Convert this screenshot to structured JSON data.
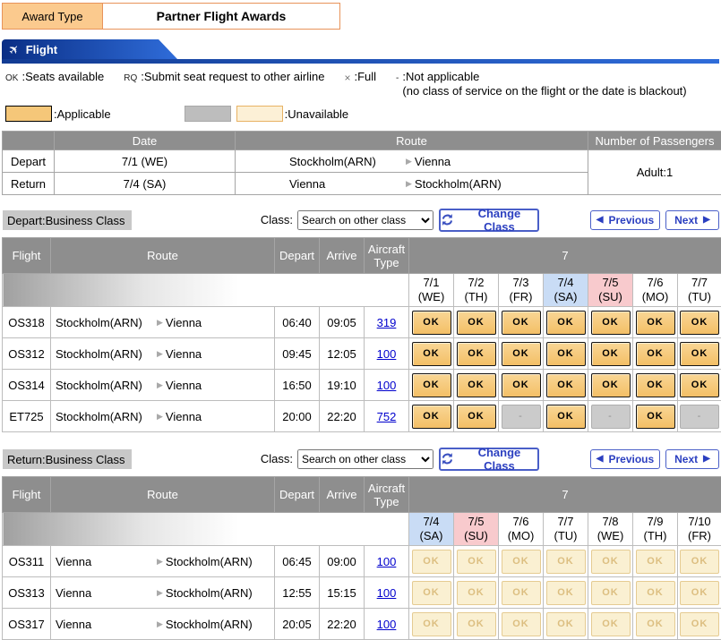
{
  "header": {
    "award_type_label": "Award Type",
    "award_type_value": "Partner Flight Awards",
    "flight_tab_label": "Flight"
  },
  "legend": {
    "ok_symbol": "OK",
    "ok_text": ":Seats available",
    "rq_symbol": "RQ",
    "rq_text": ":Submit seat request to other airline",
    "full_symbol": "×",
    "full_text": ":Full",
    "na_symbol": "-",
    "na_text": ":Not applicable",
    "na_note": "(no class of service on the flight or the date is blackout)",
    "applicable_label": ":Applicable",
    "unavailable_label": ":Unavailable"
  },
  "summary": {
    "col_date": "Date",
    "col_route": "Route",
    "col_passengers": "Number of Passengers",
    "rows": [
      {
        "label": "Depart",
        "date": "7/1 (WE)",
        "from": "Stockholm(ARN)",
        "to": "Vienna"
      },
      {
        "label": "Return",
        "date": "7/4 (SA)",
        "from": "Vienna",
        "to": "Stockholm(ARN)"
      }
    ],
    "passengers": "Adult:1"
  },
  "toolbar": {
    "class_label": "Class:",
    "class_select_value": "Search on other class",
    "change_class_label": "Change Class",
    "previous_label": "Previous",
    "next_label": "Next",
    "prev_arrow": "◀",
    "next_arrow": "▶"
  },
  "grid_columns": {
    "flight": "Flight",
    "route": "Route",
    "depart": "Depart",
    "arrive": "Arrive",
    "aircraft": "Aircraft Type"
  },
  "availability_labels": {
    "ok": "OK",
    "na": "-",
    "dim": "OK"
  },
  "route_arrow": "▶",
  "depart_section": {
    "title": "Depart:Business Class",
    "month": "7",
    "dates": [
      {
        "d": "7/1",
        "w": "(WE)",
        "hl": "none"
      },
      {
        "d": "7/2",
        "w": "(TH)",
        "hl": "none"
      },
      {
        "d": "7/3",
        "w": "(FR)",
        "hl": "none"
      },
      {
        "d": "7/4",
        "w": "(SA)",
        "hl": "sat"
      },
      {
        "d": "7/5",
        "w": "(SU)",
        "hl": "sun"
      },
      {
        "d": "7/6",
        "w": "(MO)",
        "hl": "none"
      },
      {
        "d": "7/7",
        "w": "(TU)",
        "hl": "none"
      }
    ],
    "flights": [
      {
        "flight": "OS318",
        "from": "Stockholm(ARN)",
        "to": "Vienna",
        "depart": "06:40",
        "arrive": "09:05",
        "aircraft": "319",
        "cells": [
          "ok",
          "ok",
          "ok",
          "ok",
          "ok",
          "ok",
          "ok"
        ]
      },
      {
        "flight": "OS312",
        "from": "Stockholm(ARN)",
        "to": "Vienna",
        "depart": "09:45",
        "arrive": "12:05",
        "aircraft": "100",
        "cells": [
          "ok",
          "ok",
          "ok",
          "ok",
          "ok",
          "ok",
          "ok"
        ]
      },
      {
        "flight": "OS314",
        "from": "Stockholm(ARN)",
        "to": "Vienna",
        "depart": "16:50",
        "arrive": "19:10",
        "aircraft": "100",
        "cells": [
          "ok",
          "ok",
          "ok",
          "ok",
          "ok",
          "ok",
          "ok"
        ]
      },
      {
        "flight": "ET725",
        "from": "Stockholm(ARN)",
        "to": "Vienna",
        "depart": "20:00",
        "arrive": "22:20",
        "aircraft": "752",
        "cells": [
          "ok",
          "ok",
          "na",
          "ok",
          "na",
          "ok",
          "na"
        ]
      }
    ]
  },
  "return_section": {
    "title": "Return:Business Class",
    "month": "7",
    "dates": [
      {
        "d": "7/4",
        "w": "(SA)",
        "hl": "sat"
      },
      {
        "d": "7/5",
        "w": "(SU)",
        "hl": "sun"
      },
      {
        "d": "7/6",
        "w": "(MO)",
        "hl": "none"
      },
      {
        "d": "7/7",
        "w": "(TU)",
        "hl": "none"
      },
      {
        "d": "7/8",
        "w": "(WE)",
        "hl": "none"
      },
      {
        "d": "7/9",
        "w": "(TH)",
        "hl": "none"
      },
      {
        "d": "7/10",
        "w": "(FR)",
        "hl": "none"
      }
    ],
    "flights": [
      {
        "flight": "OS311",
        "from": "Vienna",
        "to": "Stockholm(ARN)",
        "depart": "06:45",
        "arrive": "09:00",
        "aircraft": "100",
        "cells": [
          "dim",
          "dim",
          "dim",
          "dim",
          "dim",
          "dim",
          "dim"
        ]
      },
      {
        "flight": "OS313",
        "from": "Vienna",
        "to": "Stockholm(ARN)",
        "depart": "12:55",
        "arrive": "15:15",
        "aircraft": "100",
        "cells": [
          "dim",
          "dim",
          "dim",
          "dim",
          "dim",
          "dim",
          "dim"
        ]
      },
      {
        "flight": "OS317",
        "from": "Vienna",
        "to": "Stockholm(ARN)",
        "depart": "20:05",
        "arrive": "22:20",
        "aircraft": "100",
        "cells": [
          "dim",
          "dim",
          "dim",
          "dim",
          "dim",
          "dim",
          "dim"
        ]
      }
    ]
  },
  "colors": {
    "applicable_orange": "#F5C779",
    "unavailable_cream": "#FAF0D2",
    "not_applicable_gray": "#CBCBCB",
    "saturday_blue": "#C9DCF5",
    "sunday_pink": "#F8CACD",
    "tab_blue_dark": "#0A2E85",
    "tab_blue_light": "#2F6CD9",
    "button_blue": "#2B3FC0",
    "header_gray": "#8E8E8E"
  }
}
